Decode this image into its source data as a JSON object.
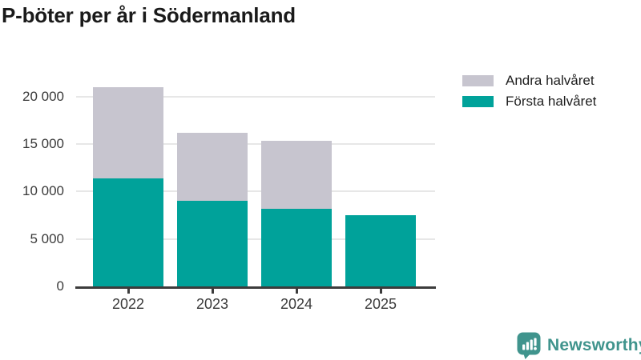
{
  "title": "P-böter per år i Södermanland",
  "legend": {
    "items": [
      {
        "label": "Andra halvåret",
        "color": "#c7c5cf"
      },
      {
        "label": "Första halvåret",
        "color": "#00a29a"
      }
    ]
  },
  "chart_data": {
    "type": "bar",
    "stacked": true,
    "title": "P-böter per år i Södermanland",
    "categories": [
      "2022",
      "2023",
      "2024",
      "2025"
    ],
    "series": [
      {
        "name": "Första halvåret",
        "color": "#00a29a",
        "values": [
          11400,
          9000,
          8150,
          7500
        ]
      },
      {
        "name": "Andra halvåret",
        "color": "#c7c5cf",
        "values": [
          9600,
          7150,
          7200,
          0
        ]
      }
    ],
    "totals": [
      21000,
      16150,
      15350,
      7500
    ],
    "xlabel": "",
    "ylabel": "",
    "ylim": [
      0,
      22000
    ],
    "yticks": [
      0,
      5000,
      10000,
      15000,
      20000
    ],
    "ytick_labels": [
      "0",
      "5 000",
      "10 000",
      "15 000",
      "20 000"
    ],
    "grid": true,
    "gridline_color": "#e7e7e7",
    "axis_color": "#3c3c3c",
    "legend_position": "top-right"
  },
  "footer": {
    "brand": "Newsworthy",
    "brand_color": "#40948d"
  }
}
